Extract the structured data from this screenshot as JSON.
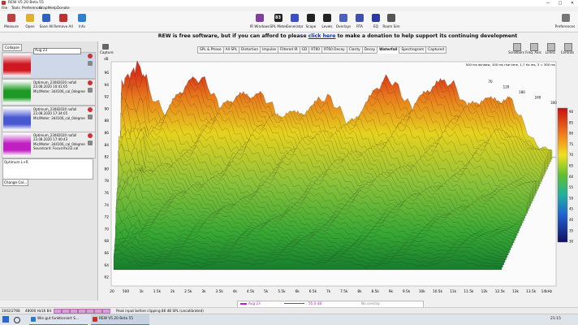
{
  "window": {
    "title": "REW V5.20 Beta 55"
  },
  "menu": [
    "File",
    "Tools",
    "Preferences",
    "Graph",
    "Help",
    "Donate"
  ],
  "toolbar_left": [
    "Measure",
    "Open",
    "Save All",
    "Remove All",
    "Info"
  ],
  "toolbar_right": [
    "IR Windows",
    "SPL Meter",
    "Generator",
    "Scope",
    "Levels",
    "Overlays",
    "RTA",
    "EQ",
    "Room Sim"
  ],
  "spl_meter_value": "83",
  "preferences": "Preferences",
  "banner": {
    "before": "REW is free software, but if you can afford to please ",
    "link": "click here",
    "after": " to make a donation to help support its continuing development"
  },
  "measurements": {
    "collapse": "Collapse",
    "items": [
      {
        "lines": [
          "Aug 23"
        ]
      },
      {
        "lines": [
          "Optimum_23082020 nofall",
          "23.08.2020 10:41:05",
          "Mic/Meter: 344106_cal_0degree"
        ]
      },
      {
        "lines": [
          "Optimum_23082020 nofall",
          "23.08.2020 17:34:05",
          "Mic/Meter: 344106_cal_0degree"
        ]
      },
      {
        "lines": [
          "Optimum_23082020 nofall",
          "23.08.2020 17:40:43",
          "Mic/Meter: 344106_cal_0degree",
          "Soundcard: Focusrite2i2.cal"
        ]
      }
    ],
    "notes": "Optimum L+R",
    "change_cal": "Change Cal..."
  },
  "graph": {
    "capture": "Capture",
    "unit": "dB",
    "tabs": [
      "SPL & Phase",
      "All SPL",
      "Distortion",
      "Impulse",
      "Filtered IR",
      "GD",
      "RT60",
      "RT60 Decay",
      "Clarity",
      "Decay",
      "Waterfall",
      "Spectrogram",
      "Captured"
    ],
    "active_tab": 10,
    "right_buttons": [
      "Scrollbars",
      "Freq. Axis",
      "Limits",
      "Controls"
    ],
    "info": "500 ms window, 100 ms rise time, 1,7 Hz res, 3 = 300 ms",
    "y_ticks": [
      96,
      94,
      92,
      90,
      88,
      86,
      84,
      82,
      80,
      78,
      76,
      74,
      72,
      70,
      68,
      66,
      64,
      62
    ],
    "x_ticks": [
      "20",
      "500",
      "1k",
      "1.5k",
      "2k",
      "2.5k",
      "3k",
      "3.5k",
      "4k",
      "4.5k",
      "5k",
      "5.5k",
      "6k",
      "6.5k",
      "7k",
      "7.5k",
      "8k",
      "8.5k",
      "9k",
      "9.5k",
      "10k",
      "10.5k",
      "11k",
      "11.5k",
      "12k",
      "12.5k",
      "13k",
      "13.5k",
      "14kHz"
    ],
    "depth_ticks": [
      70,
      120,
      180,
      240,
      300
    ],
    "colorbar_ticks": [
      90,
      85,
      80,
      75,
      70,
      65,
      60,
      55,
      50,
      45,
      40,
      35,
      30
    ]
  },
  "legend": {
    "name": "Aug 23",
    "level": "55,0 dB",
    "overlay": "No overlay"
  },
  "status": {
    "samples": "1002/2768",
    "rate": "48000 Hz",
    "bits": "16 Bit",
    "message": "Peak input before clipping 86 dB SPL (uncalibrated)"
  },
  "taskbar": {
    "items": [
      "Wie gut funktioniert S...",
      "REW V5.20 Beta 55"
    ],
    "time": "21:15"
  }
}
